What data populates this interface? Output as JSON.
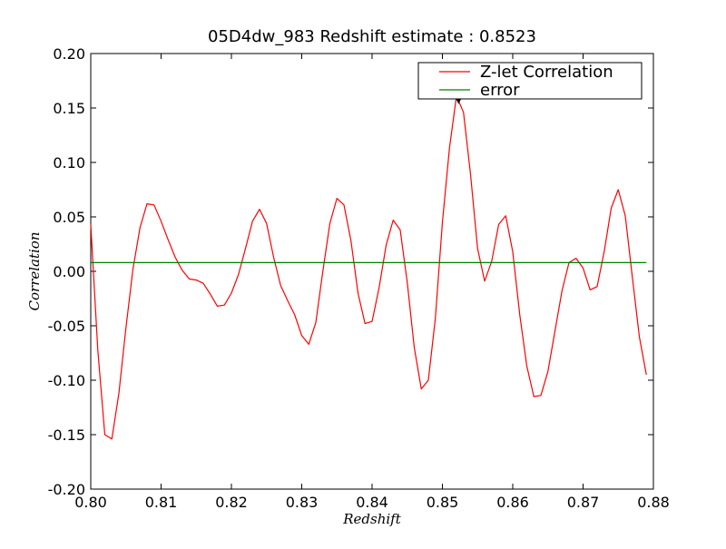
{
  "chart_data": {
    "type": "line",
    "title": "05D4dw_983 Redshift estimate : 0.8523",
    "xlabel": "Redshift",
    "ylabel": "Correlation",
    "xlim": [
      0.8,
      0.88
    ],
    "ylim": [
      -0.2,
      0.2
    ],
    "x_ticks": [
      "0.80",
      "0.81",
      "0.82",
      "0.83",
      "0.84",
      "0.85",
      "0.86",
      "0.87",
      "0.88"
    ],
    "y_ticks": [
      "0.20",
      "0.15",
      "0.10",
      "0.05",
      "0.00",
      "-0.05",
      "-0.10",
      "-0.15",
      "-0.20"
    ],
    "grid": false,
    "legend_position": "top-right",
    "series": [
      {
        "name": "Z-let Correlation",
        "color": "#ff0000",
        "x": [
          0.8,
          0.801,
          0.802,
          0.803,
          0.804,
          0.805,
          0.806,
          0.807,
          0.808,
          0.809,
          0.81,
          0.811,
          0.812,
          0.813,
          0.814,
          0.815,
          0.816,
          0.817,
          0.818,
          0.819,
          0.82,
          0.821,
          0.822,
          0.823,
          0.824,
          0.825,
          0.826,
          0.827,
          0.828,
          0.829,
          0.83,
          0.831,
          0.832,
          0.833,
          0.834,
          0.835,
          0.836,
          0.837,
          0.838,
          0.839,
          0.84,
          0.841,
          0.842,
          0.843,
          0.844,
          0.845,
          0.846,
          0.847,
          0.848,
          0.849,
          0.85,
          0.851,
          0.852,
          0.853,
          0.854,
          0.855,
          0.856,
          0.857,
          0.858,
          0.859,
          0.86,
          0.861,
          0.862,
          0.863,
          0.864,
          0.865,
          0.866,
          0.867,
          0.868,
          0.869,
          0.87,
          0.871,
          0.872,
          0.873,
          0.874,
          0.875,
          0.876,
          0.877,
          0.878,
          0.879
        ],
        "values": [
          0.043,
          -0.072,
          -0.15,
          -0.154,
          -0.112,
          -0.052,
          0.002,
          0.04,
          0.062,
          0.061,
          0.046,
          0.029,
          0.013,
          0.001,
          -0.007,
          -0.008,
          -0.011,
          -0.021,
          -0.032,
          -0.031,
          -0.02,
          -0.003,
          0.021,
          0.046,
          0.057,
          0.044,
          0.013,
          -0.013,
          -0.027,
          -0.04,
          -0.059,
          -0.067,
          -0.047,
          0.0,
          0.044,
          0.067,
          0.061,
          0.028,
          -0.02,
          -0.048,
          -0.046,
          -0.015,
          0.024,
          0.047,
          0.038,
          -0.01,
          -0.07,
          -0.108,
          -0.1,
          -0.043,
          0.045,
          0.113,
          0.161,
          0.146,
          0.089,
          0.021,
          -0.009,
          0.009,
          0.043,
          0.051,
          0.018,
          -0.04,
          -0.087,
          -0.115,
          -0.114,
          -0.092,
          -0.055,
          -0.018,
          0.008,
          0.012,
          0.003,
          -0.017,
          -0.014,
          0.018,
          0.058,
          0.075,
          0.051,
          -0.005,
          -0.06,
          -0.095
        ]
      },
      {
        "name": "error",
        "color": "#008000",
        "x": [
          0.8,
          0.879
        ],
        "values": [
          0.008,
          0.008
        ]
      }
    ],
    "marker": {
      "x": 0.8523,
      "y": 0.161,
      "shape": "triangle-down"
    }
  }
}
